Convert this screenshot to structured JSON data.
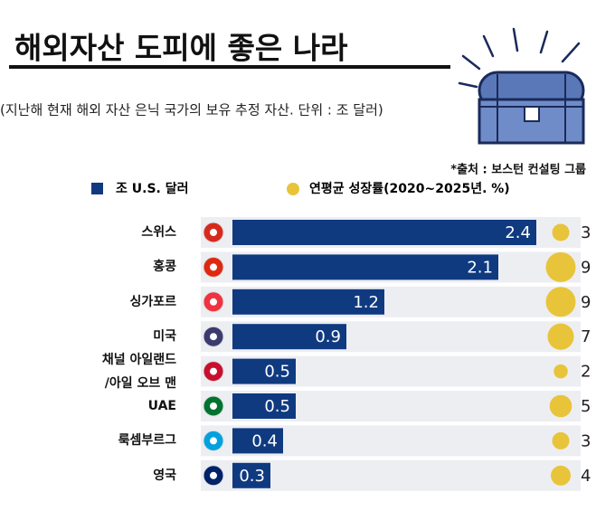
{
  "chart_data": {
    "type": "bar-bubble",
    "title": "해외자산 도피에 좋은 나라",
    "subtitle": "(지난해 현재 해외 자산 은닉 국가의 보유 추정 자산. 단위 : 조 달러)",
    "source": "*출처 : 보스턴 컨설팅 그룹",
    "categories": [
      "스위스",
      "홍콩",
      "싱가포르",
      "미국",
      "채널 아일랜드\n/아일 오브 맨",
      "UAE",
      "룩셈부르그",
      "영국"
    ],
    "series": [
      {
        "name": "조 U.S. 달러",
        "color": "#0f3a80",
        "values": [
          2.4,
          2.1,
          1.2,
          0.9,
          0.5,
          0.5,
          0.4,
          0.3
        ]
      },
      {
        "name": "연평균 성장률(2020~2025년. %)",
        "color": "#e8c43a",
        "values": [
          3,
          9,
          9,
          7,
          2,
          5,
          3,
          4
        ]
      }
    ]
  }
}
